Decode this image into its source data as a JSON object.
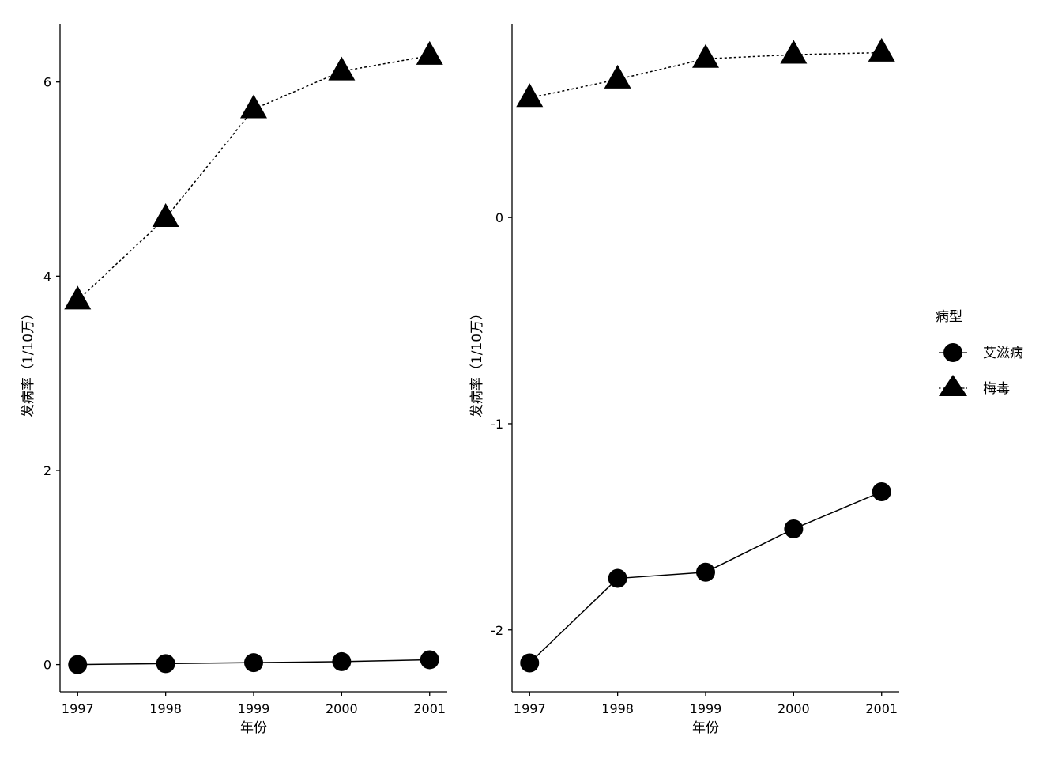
{
  "chart_data": [
    {
      "type": "line",
      "title": "",
      "xlabel": "年份",
      "ylabel": "发病率（1/10万）",
      "x": [
        1997,
        1998,
        1999,
        2000,
        2001
      ],
      "xticks": [
        "1997",
        "1998",
        "1999",
        "2000",
        "2001"
      ],
      "ylim": [
        -0.28,
        6.6
      ],
      "yticks": [
        0,
        2,
        4,
        6
      ],
      "ytick_labels": [
        "0",
        "2",
        "4",
        "6"
      ],
      "grid": false,
      "series": [
        {
          "name": "艾滋病",
          "values": [
            0.0,
            0.01,
            0.02,
            0.03,
            0.05
          ]
        },
        {
          "name": "梅毒",
          "values": [
            3.75,
            4.6,
            5.72,
            6.11,
            6.27
          ]
        }
      ]
    },
    {
      "type": "line",
      "title": "",
      "xlabel": "年份",
      "ylabel": "发病率（1/10万）",
      "x": [
        1997,
        1998,
        1999,
        2000,
        2001
      ],
      "xticks": [
        "1997",
        "1998",
        "1999",
        "2000",
        "2001"
      ],
      "ylim": [
        -2.3,
        0.94
      ],
      "yticks": [
        -2,
        -1,
        0
      ],
      "ytick_labels": [
        "-2",
        "-1",
        "0"
      ],
      "grid": false,
      "series": [
        {
          "name": "艾滋病",
          "values": [
            -2.16,
            -1.75,
            -1.72,
            -1.51,
            -1.33
          ]
        },
        {
          "name": "梅毒",
          "values": [
            0.58,
            0.67,
            0.77,
            0.79,
            0.8
          ]
        }
      ]
    }
  ],
  "legend": {
    "title": "病型",
    "placement": "right",
    "entries": [
      {
        "label": "艾滋病",
        "marker": "circle-icon",
        "line": "solid"
      },
      {
        "label": "梅毒",
        "marker": "triangle-icon",
        "line": "dotted"
      }
    ]
  }
}
